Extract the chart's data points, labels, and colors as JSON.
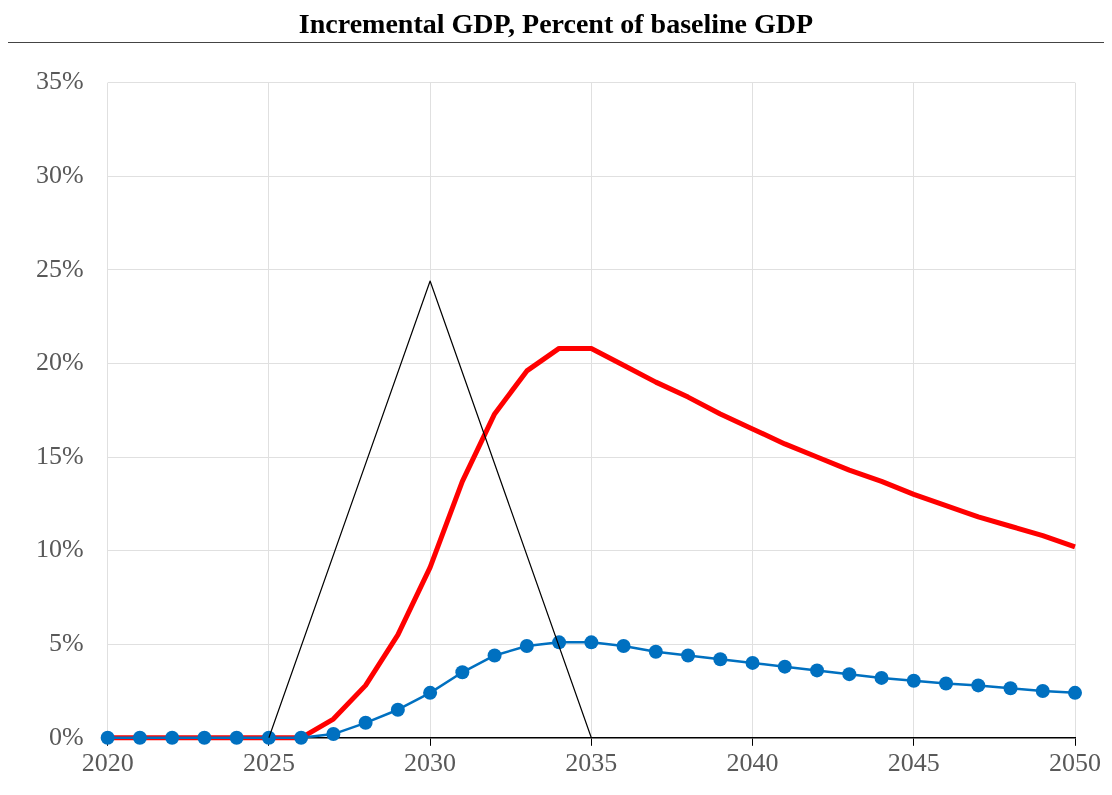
{
  "chart_data": {
    "type": "line",
    "title": "Incremental GDP, Percent of baseline GDP",
    "x": [
      2020,
      2021,
      2022,
      2023,
      2024,
      2025,
      2026,
      2027,
      2028,
      2029,
      2030,
      2031,
      2032,
      2033,
      2034,
      2035,
      2036,
      2037,
      2038,
      2039,
      2040,
      2041,
      2042,
      2043,
      2044,
      2045,
      2046,
      2047,
      2048,
      2049,
      2050
    ],
    "series": [
      {
        "color": "#ff0000",
        "marker": "none",
        "values": [
          0,
          0,
          0,
          0,
          0,
          0,
          0,
          1.0,
          2.8,
          5.5,
          9.1,
          13.7,
          17.3,
          19.6,
          20.8,
          20.8,
          19.9,
          19.0,
          18.2,
          17.3,
          16.5,
          15.7,
          15.0,
          14.3,
          13.7,
          13.0,
          12.4,
          11.8,
          11.3,
          10.8,
          10.2
        ]
      },
      {
        "color": "#0070c0",
        "marker": "circle",
        "values": [
          0,
          0,
          0,
          0,
          0,
          0,
          0,
          0.2,
          0.8,
          1.5,
          2.4,
          3.5,
          4.4,
          4.9,
          5.1,
          5.1,
          4.9,
          4.6,
          4.4,
          4.2,
          4.0,
          3.8,
          3.6,
          3.4,
          3.2,
          3.05,
          2.9,
          2.8,
          2.65,
          2.5,
          2.4
        ]
      },
      {
        "color": "#000000",
        "marker": "none",
        "x": [
          2025,
          2030,
          2035
        ],
        "values": [
          0,
          24.4,
          0
        ]
      }
    ],
    "xlim": [
      2020,
      2050
    ],
    "xticks": [
      2020,
      2025,
      2030,
      2035,
      2040,
      2045,
      2050
    ],
    "ylim": [
      0,
      35
    ],
    "yticks": [
      {
        "value": 0,
        "label": "0%"
      },
      {
        "value": 5,
        "label": "5%"
      },
      {
        "value": 10,
        "label": "10%"
      },
      {
        "value": 15,
        "label": "15%"
      },
      {
        "value": 20,
        "label": "20%"
      },
      {
        "value": 25,
        "label": "25%"
      },
      {
        "value": 30,
        "label": "30%"
      },
      {
        "value": 35,
        "label": "35%"
      }
    ],
    "grid": true,
    "legend": false,
    "line_style": "solid"
  }
}
